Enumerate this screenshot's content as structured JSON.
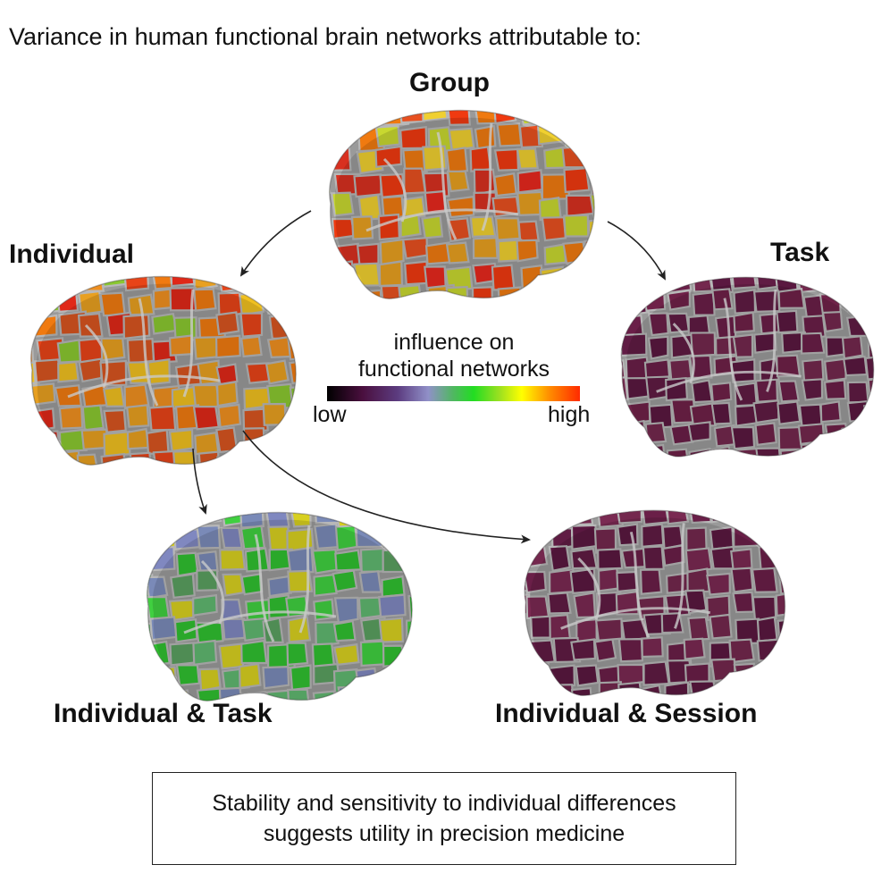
{
  "title": "Variance in human functional brain networks attributable to:",
  "brains": {
    "group": {
      "label": "Group",
      "influence": "high",
      "palette": [
        "#e8281e",
        "#f03a10",
        "#d83020",
        "#f07a10",
        "#e8a020",
        "#c8d830",
        "#f0d030",
        "#e85020"
      ]
    },
    "individual": {
      "label": "Individual",
      "influence": "high",
      "palette": [
        "#e84418",
        "#f07a10",
        "#e8a020",
        "#f0c020",
        "#e02818",
        "#8ac830",
        "#f09020",
        "#d85520"
      ]
    },
    "task": {
      "label": "Task",
      "influence": "low",
      "palette": [
        "#6a1f48",
        "#5a1840",
        "#74284e",
        "#601c44",
        "#6f2148"
      ]
    },
    "individual_task": {
      "label": "Individual & Task",
      "influence": "medium",
      "palette": [
        "#8088c0",
        "#30c030",
        "#40d040",
        "#7a8ab8",
        "#5aa060",
        "#d8d020",
        "#60b870"
      ]
    },
    "individual_session": {
      "label": "Individual & Session",
      "influence": "low",
      "palette": [
        "#6a1f48",
        "#5a1840",
        "#74284e",
        "#601c44",
        "#7a2a52"
      ]
    }
  },
  "legend": {
    "title_line1": "influence on",
    "title_line2": "functional networks",
    "low_label": "low",
    "high_label": "high"
  },
  "conclusion": {
    "line1": "Stability and sensitivity to individual differences",
    "line2": "suggests utility in precision medicine"
  }
}
